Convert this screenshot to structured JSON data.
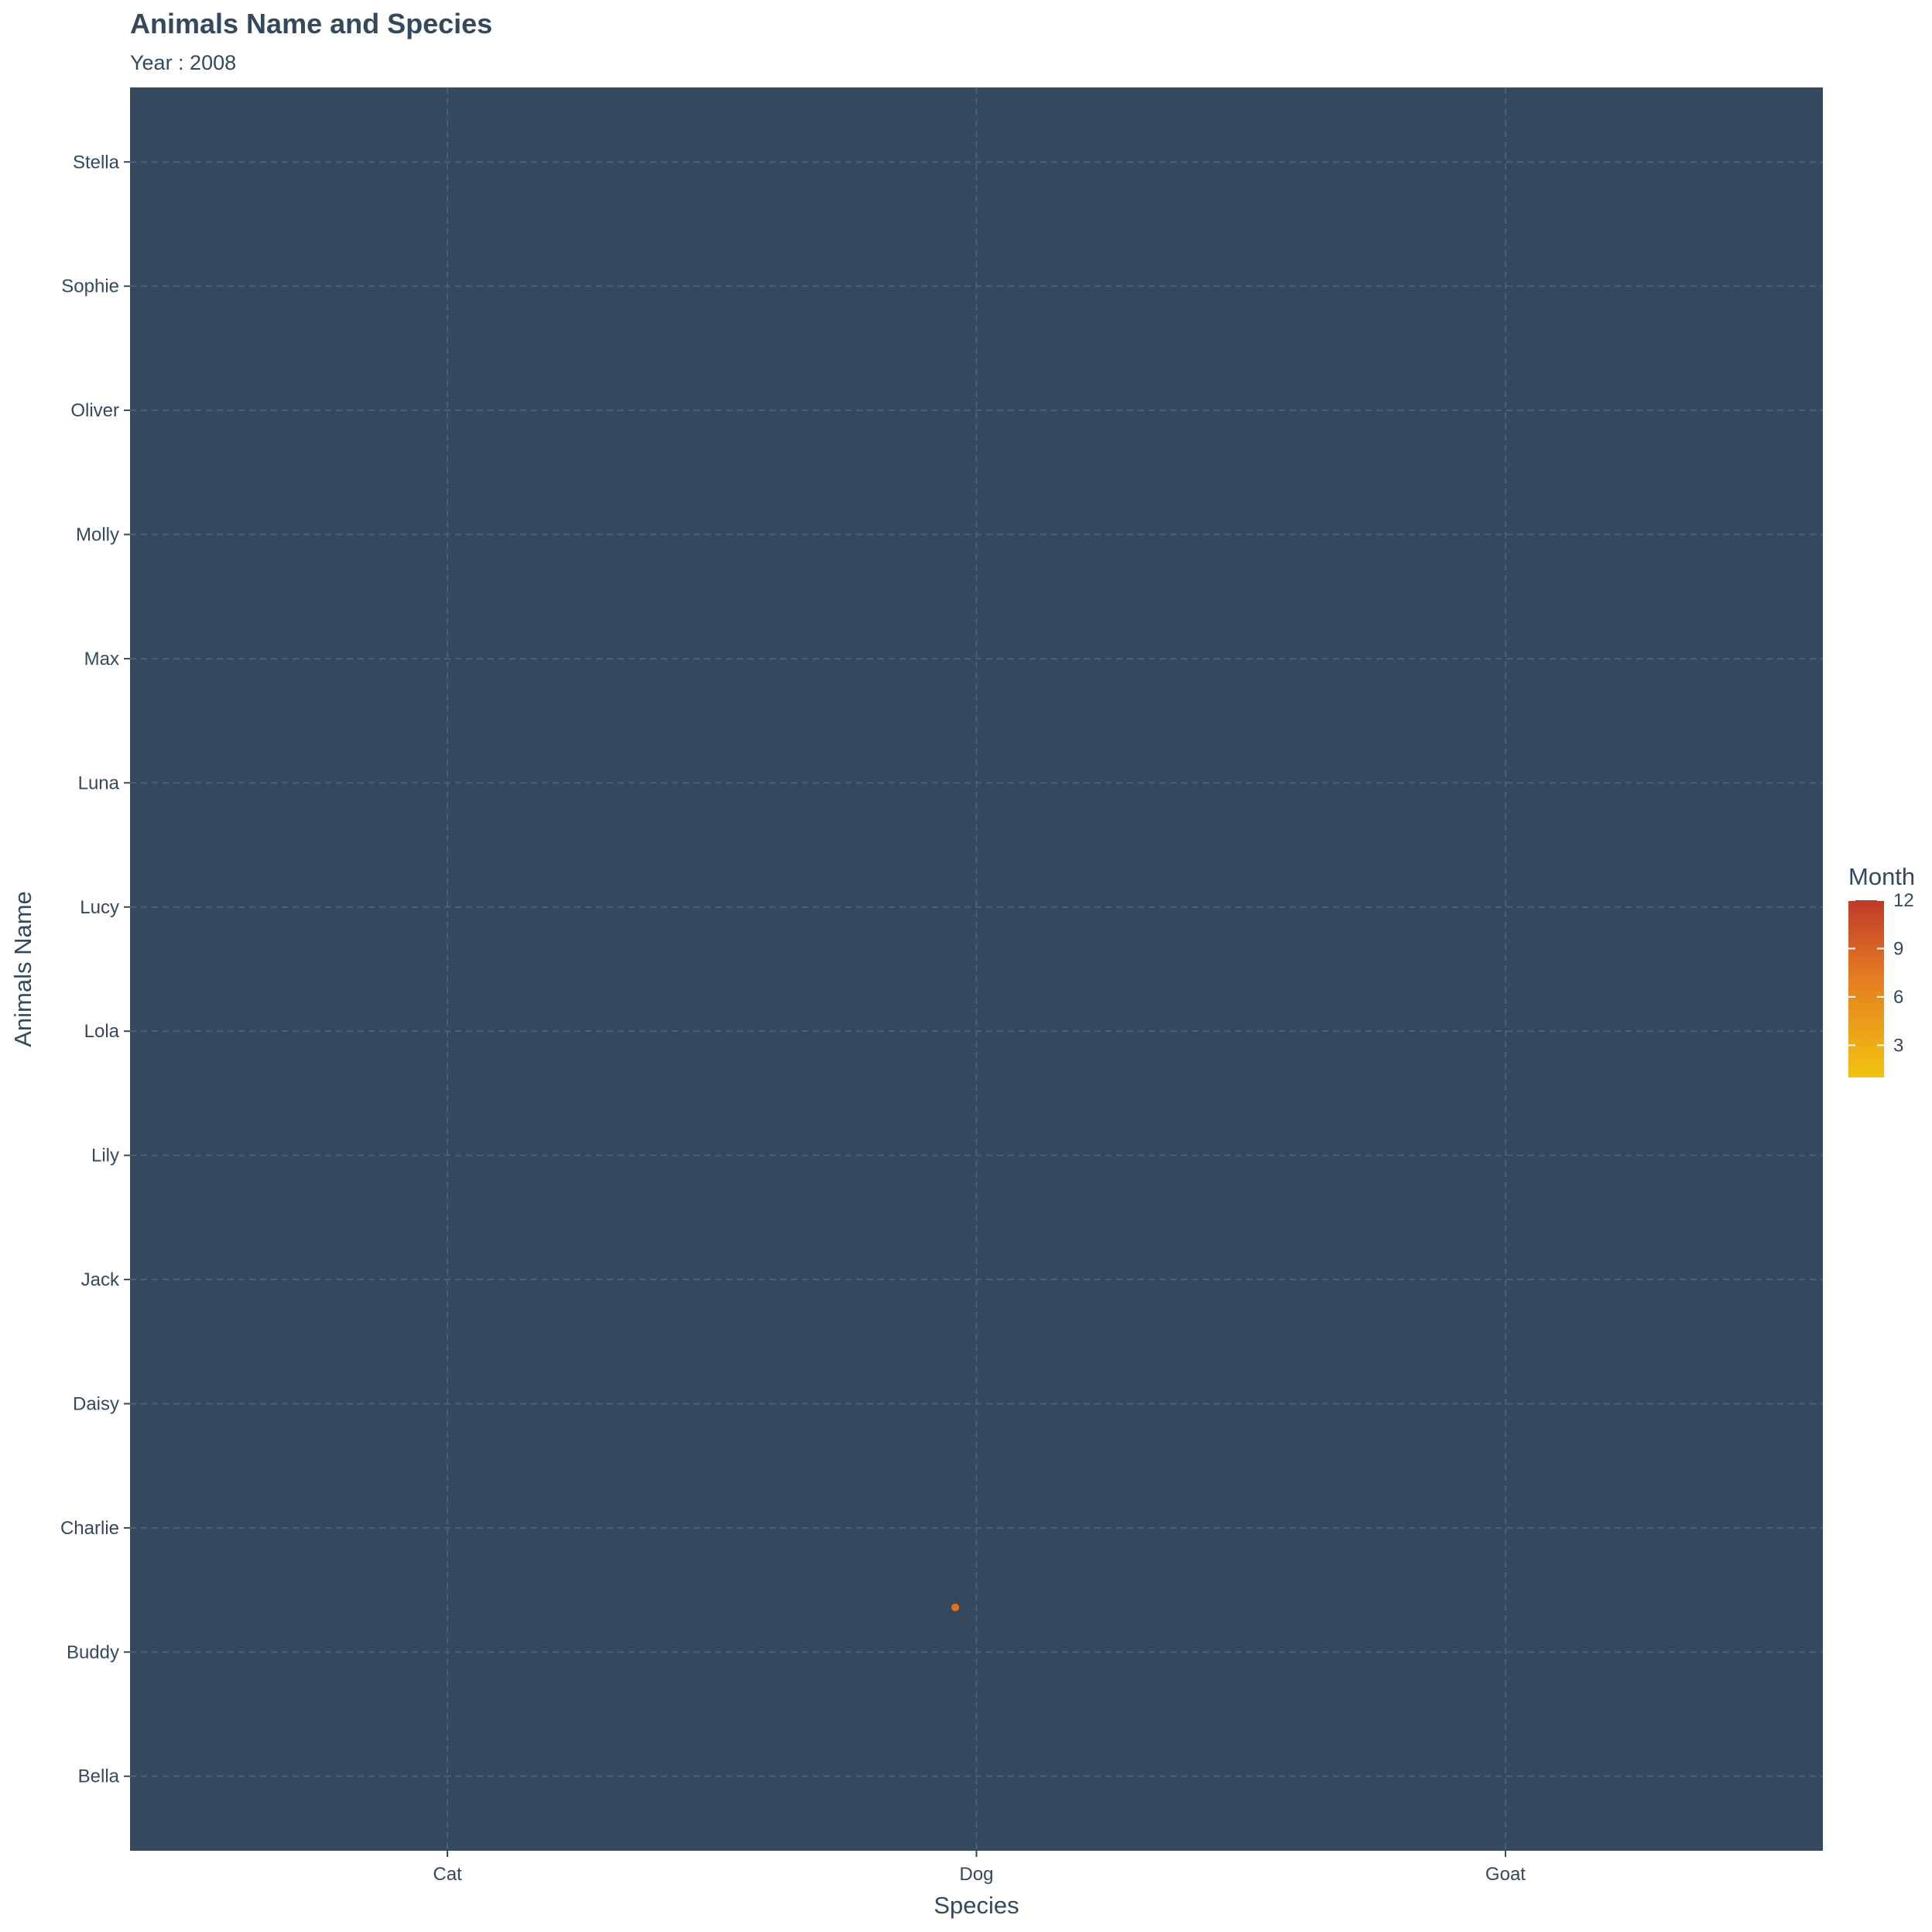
{
  "chart_data": {
    "type": "scatter",
    "title": "Animals Name and Species",
    "subtitle": "Year : 2008",
    "xlabel": "Species",
    "ylabel": "Animals Name",
    "x_categories": [
      "Cat",
      "Dog",
      "Goat"
    ],
    "y_categories": [
      "Bella",
      "Buddy",
      "Charlie",
      "Daisy",
      "Jack",
      "Lily",
      "Lola",
      "Lucy",
      "Luna",
      "Max",
      "Molly",
      "Oliver",
      "Sophie",
      "Stella"
    ],
    "points": [
      {
        "x": "Dog",
        "y": "Buddy",
        "month": 8,
        "jitter_x": -0.04,
        "jitter_y": 0.36
      }
    ],
    "grid": true,
    "panel_color": "#34495e",
    "grid_color": "#4b5f7b",
    "legend": {
      "title": "Month",
      "position": "right",
      "ticks": [
        3,
        6,
        9,
        12
      ],
      "range": [
        1,
        12
      ],
      "low_color": "#f1c40f",
      "mid_color": "#e67e22",
      "high_color": "#c0392b"
    }
  }
}
